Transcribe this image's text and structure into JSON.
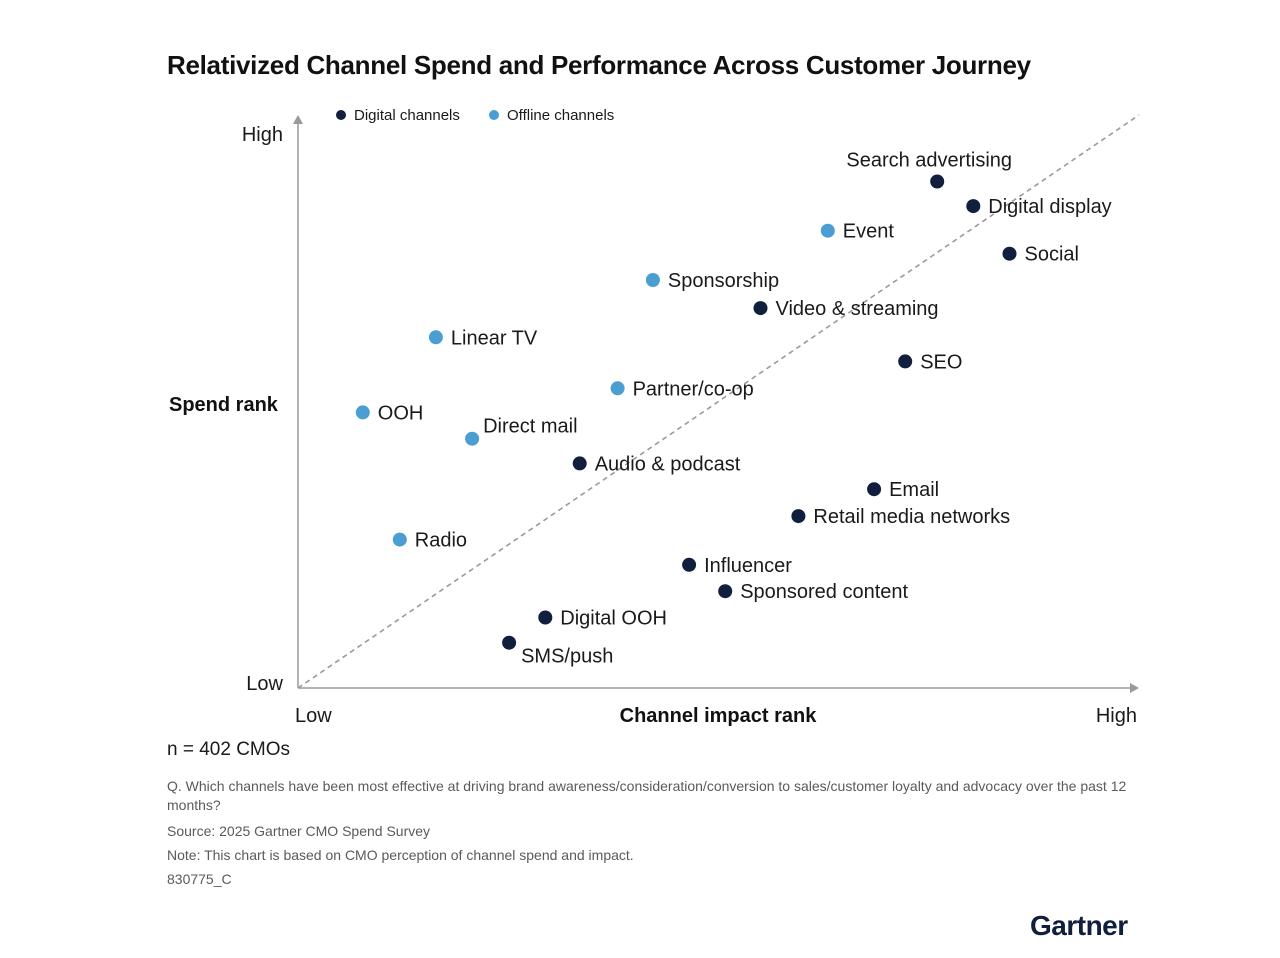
{
  "chart_data": {
    "type": "scatter",
    "title": "Relativized Channel Spend and Performance Across Customer Journey",
    "xlabel": "Channel impact rank",
    "ylabel": "Spend rank",
    "x_low": "Low",
    "x_high": "High",
    "y_low": "Low",
    "y_high": "High",
    "xlim": [
      0,
      100
    ],
    "ylim": [
      0,
      100
    ],
    "diagonal_reference": true,
    "legend": {
      "placement": "top-left",
      "entries": [
        {
          "name": "Digital channels",
          "color": "#0f1f3d"
        },
        {
          "name": "Offline channels",
          "color": "#4a9ed1"
        }
      ]
    },
    "series": [
      {
        "name": "Digital channels",
        "color": "#0f1f3d",
        "points": [
          {
            "label": "Search advertising",
            "x": 76.0,
            "y": 88.4,
            "label_pos": "above"
          },
          {
            "label": "Digital display",
            "x": 80.3,
            "y": 84.1,
            "label_pos": "right"
          },
          {
            "label": "Social",
            "x": 84.6,
            "y": 75.8,
            "label_pos": "right"
          },
          {
            "label": "Video & streaming",
            "x": 55.0,
            "y": 66.3,
            "label_pos": "right"
          },
          {
            "label": "SEO",
            "x": 72.2,
            "y": 57.0,
            "label_pos": "right"
          },
          {
            "label": "Audio & podcast",
            "x": 33.5,
            "y": 39.2,
            "label_pos": "right"
          },
          {
            "label": "Email",
            "x": 68.5,
            "y": 34.7,
            "label_pos": "right"
          },
          {
            "label": "Retail media networks",
            "x": 59.5,
            "y": 30.0,
            "label_pos": "right"
          },
          {
            "label": "Influencer",
            "x": 46.5,
            "y": 21.5,
            "label_pos": "right"
          },
          {
            "label": "Sponsored content",
            "x": 50.8,
            "y": 16.9,
            "label_pos": "right"
          },
          {
            "label": "Digital OOH",
            "x": 29.4,
            "y": 12.3,
            "label_pos": "right"
          },
          {
            "label": "SMS/push",
            "x": 25.1,
            "y": 7.9,
            "label_pos": "below-right"
          }
        ]
      },
      {
        "name": "Offline channels",
        "color": "#4a9ed1",
        "points": [
          {
            "label": "Event",
            "x": 63.0,
            "y": 79.8,
            "label_pos": "right"
          },
          {
            "label": "Sponsorship",
            "x": 42.2,
            "y": 71.2,
            "label_pos": "right"
          },
          {
            "label": "Linear TV",
            "x": 16.4,
            "y": 61.2,
            "label_pos": "right"
          },
          {
            "label": "Partner/co-op",
            "x": 38.0,
            "y": 52.3,
            "label_pos": "right"
          },
          {
            "label": "OOH",
            "x": 7.7,
            "y": 48.1,
            "label_pos": "right"
          },
          {
            "label": "Direct mail",
            "x": 20.7,
            "y": 43.5,
            "label_pos": "above-right"
          },
          {
            "label": "Radio",
            "x": 12.1,
            "y": 25.9,
            "label_pos": "right"
          }
        ]
      }
    ]
  },
  "footer": {
    "sample": "n = 402 CMOs",
    "question": "Q. Which channels have been most effective at driving brand awareness/consideration/conversion to sales/customer loyalty and advocacy over the past 12 months?",
    "source": "Source: 2025 Gartner CMO Spend Survey",
    "note": "Note: This chart is based on CMO perception of channel spend and impact.",
    "id": "830775_C"
  },
  "logo": {
    "text": "Gartner",
    "color": "#0f1f3d"
  }
}
